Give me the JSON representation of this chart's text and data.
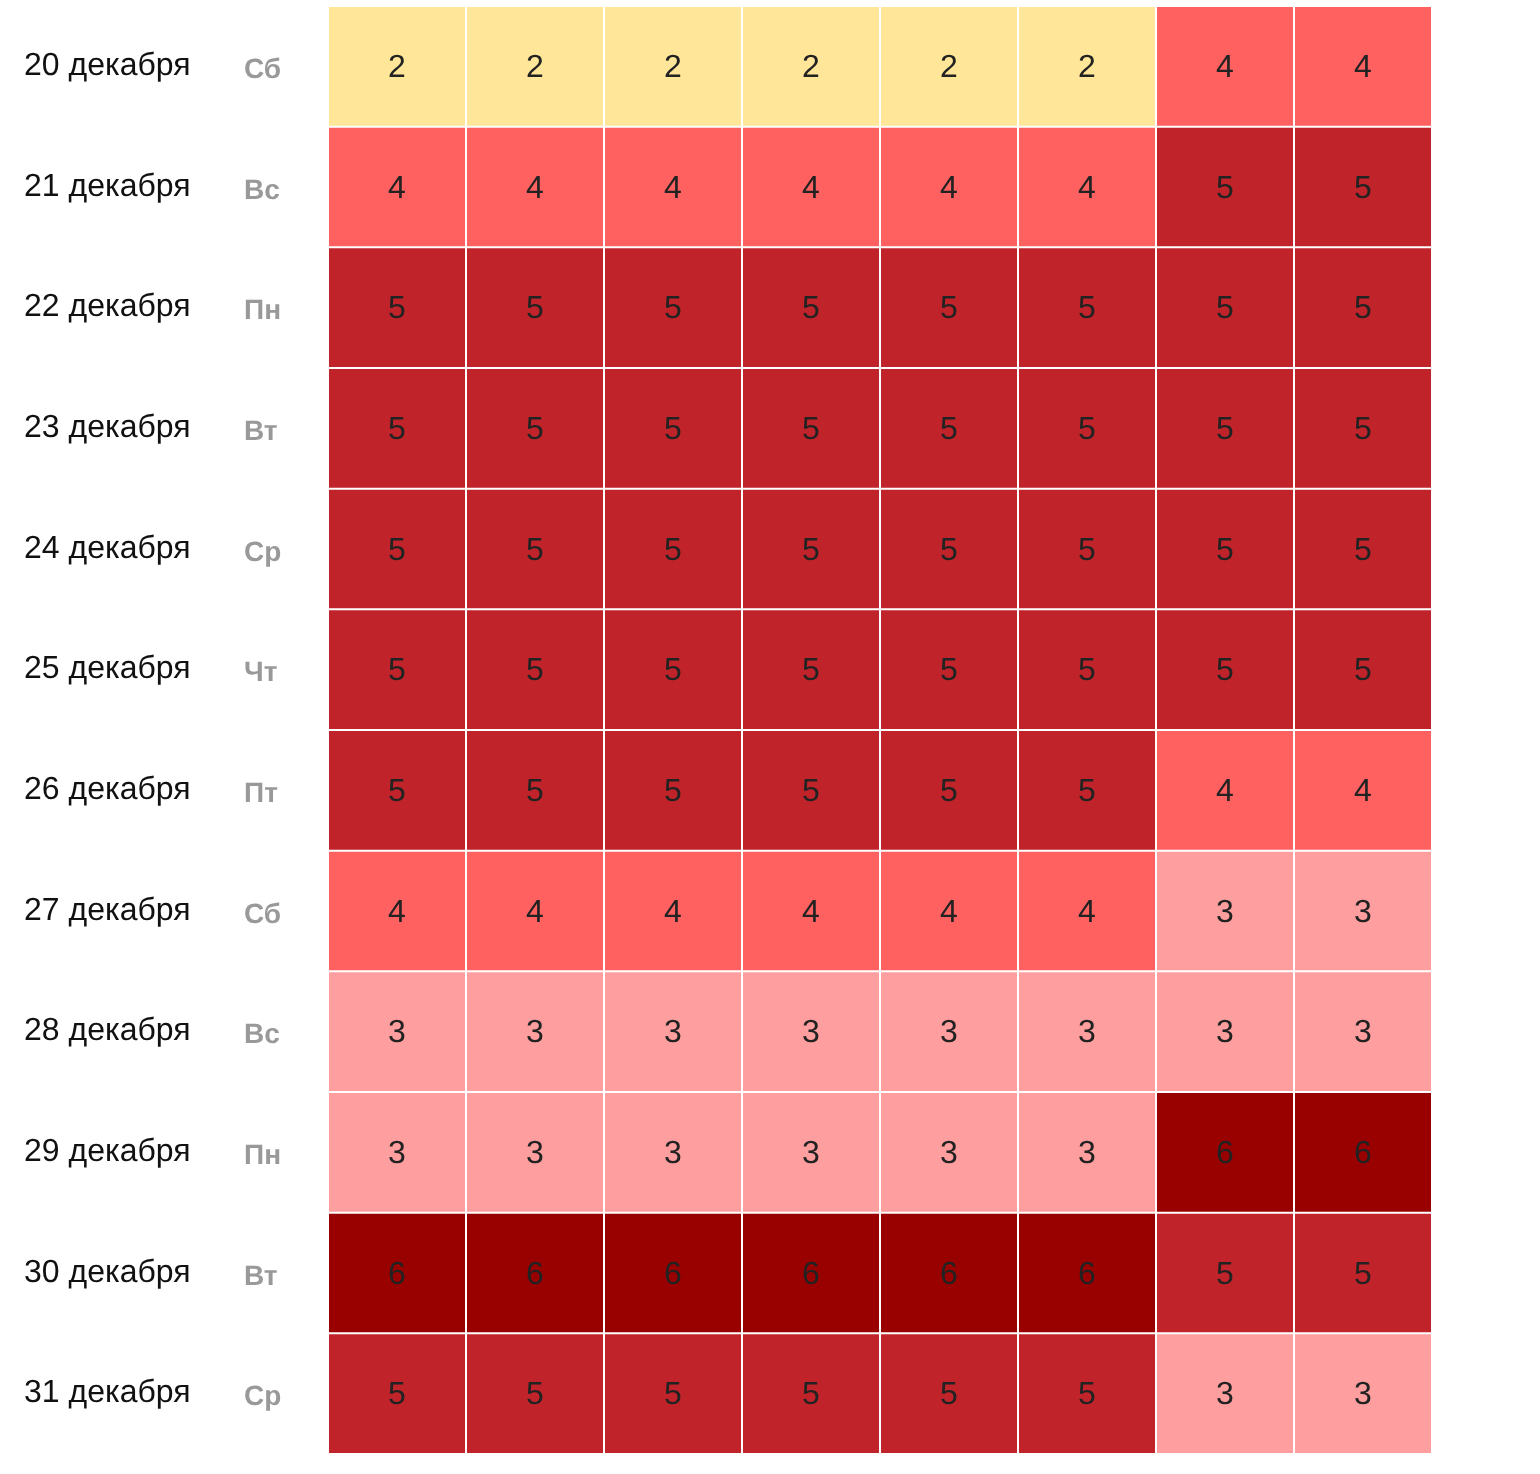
{
  "chart_data": {
    "type": "heatmap",
    "categories": [
      null,
      null,
      null,
      null,
      null,
      null,
      null,
      null
    ],
    "y_categories": [
      "20 декабря",
      "21 декабря",
      "22 декабря",
      "23 декабря",
      "24 декабря",
      "25 декабря",
      "26 декабря",
      "27 декабря",
      "28 декабря",
      "29 декабря",
      "30 декабря",
      "31 декабря"
    ],
    "y2_categories": [
      "Сб",
      "Вс",
      "Пн",
      "Вт",
      "Ср",
      "Чт",
      "Пт",
      "Сб",
      "Вс",
      "Пн",
      "Вт",
      "Ср"
    ],
    "cells": [
      [
        2,
        2,
        2,
        2,
        2,
        2,
        4,
        4
      ],
      [
        4,
        4,
        4,
        4,
        4,
        4,
        5,
        5
      ],
      [
        5,
        5,
        5,
        5,
        5,
        5,
        5,
        5
      ],
      [
        5,
        5,
        5,
        5,
        5,
        5,
        5,
        5
      ],
      [
        5,
        5,
        5,
        5,
        5,
        5,
        5,
        5
      ],
      [
        5,
        5,
        5,
        5,
        5,
        5,
        5,
        5
      ],
      [
        5,
        5,
        5,
        5,
        5,
        5,
        4,
        4
      ],
      [
        4,
        4,
        4,
        4,
        4,
        4,
        3,
        3
      ],
      [
        3,
        3,
        3,
        3,
        3,
        3,
        3,
        3
      ],
      [
        3,
        3,
        3,
        3,
        3,
        3,
        6,
        6
      ],
      [
        6,
        6,
        6,
        6,
        6,
        6,
        5,
        5
      ],
      [
        5,
        5,
        5,
        5,
        5,
        5,
        3,
        3
      ]
    ],
    "colors": [
      [
        "#ffe699",
        "#ffe699",
        "#ffe699",
        "#ffe699",
        "#ffe699",
        "#ffe699",
        "#ff6060",
        "#ff6060"
      ],
      [
        "#ff6060",
        "#ff6060",
        "#ff6060",
        "#ff6060",
        "#ff6060",
        "#ff6060",
        "#c0242a",
        "#c0242a"
      ],
      [
        "#c0242a",
        "#c0242a",
        "#c0242a",
        "#c0242a",
        "#c0242a",
        "#c0242a",
        "#c0242a",
        "#c0242a"
      ],
      [
        "#c0242a",
        "#c0242a",
        "#c0242a",
        "#c0242a",
        "#c0242a",
        "#c0242a",
        "#c0242a",
        "#c0242a"
      ],
      [
        "#c0242a",
        "#c0242a",
        "#c0242a",
        "#c0242a",
        "#c0242a",
        "#c0242a",
        "#c0242a",
        "#c0242a"
      ],
      [
        "#c0242a",
        "#c0242a",
        "#c0242a",
        "#c0242a",
        "#c0242a",
        "#c0242a",
        "#c0242a",
        "#c0242a"
      ],
      [
        "#c0242a",
        "#c0242a",
        "#c0242a",
        "#c0242a",
        "#c0242a",
        "#c0242a",
        "#ff6060",
        "#ff6060"
      ],
      [
        "#ff6060",
        "#ff6060",
        "#ff6060",
        "#ff6060",
        "#ff6060",
        "#ff6060",
        "#ff9e9e",
        "#ff9e9e"
      ],
      [
        "#ff9e9e",
        "#ff9e9e",
        "#ff9e9e",
        "#ff9e9e",
        "#ff9e9e",
        "#ff9e9e",
        "#ff9e9e",
        "#ff9e9e"
      ],
      [
        "#ff9e9e",
        "#ff9e9e",
        "#ff9e9e",
        "#ff9e9e",
        "#ff9e9e",
        "#ff9e9e",
        "#990000",
        "#990000"
      ],
      [
        "#990000",
        "#990000",
        "#990000",
        "#990000",
        "#990000",
        "#990000",
        "#c0242a",
        "#c0242a"
      ],
      [
        "#c0242a",
        "#c0242a",
        "#c0242a",
        "#c0242a",
        "#c0242a",
        "#c0242a",
        "#ff9e9e",
        "#ff9e9e"
      ]
    ],
    "data_labels": true
  }
}
